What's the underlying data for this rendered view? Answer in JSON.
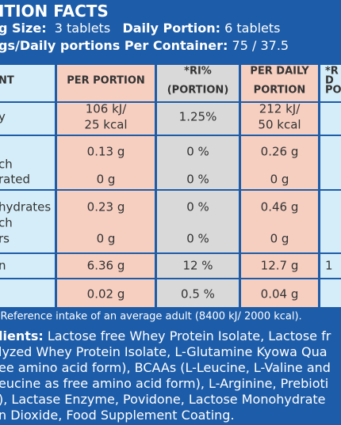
{
  "header": {
    "title": "ITION FACTS",
    "serving_label": "g Size:",
    "serving_value": "3 tablets",
    "daily_label": "Daily Portion:",
    "daily_value": "6 tablets",
    "container_label": "gs/Daily portions Per Container:",
    "container_value": "75 / 37.5"
  },
  "table": {
    "rows": [
      [
        [
          null,
          "NT",
          null
        ],
        [
          null,
          "PER PORTION",
          null
        ],
        [
          "*RI%",
          null,
          "(PORTION)"
        ],
        [
          "PER DAILY",
          null,
          "PORTION"
        ],
        [
          "*R",
          "D",
          "PO"
        ]
      ],
      [
        [
          null,
          "y",
          null
        ],
        [
          "106 kJ/",
          null,
          "25 kcal"
        ],
        [
          null,
          "1.25%",
          null
        ],
        [
          "212 kJ/",
          null,
          "50 kcal"
        ],
        [
          null,
          null,
          null
        ]
      ],
      [
        [
          null,
          "ch",
          "rated"
        ],
        [
          "0.13 g",
          null,
          "0 g"
        ],
        [
          "0 %",
          null,
          "0 %"
        ],
        [
          "0.26 g",
          null,
          "0 g"
        ],
        [
          null,
          null,
          null
        ]
      ],
      [
        [
          "hydrates",
          "ch",
          "rs"
        ],
        [
          "0.23 g",
          null,
          "0 g"
        ],
        [
          "0 %",
          null,
          "0 %"
        ],
        [
          "0.46 g",
          null,
          "0 g"
        ],
        [
          null,
          null,
          null
        ]
      ],
      [
        [
          "n"
        ],
        [
          "6.36 g"
        ],
        [
          "12 %"
        ],
        [
          "12.7 g"
        ],
        [
          "1"
        ]
      ],
      [
        [
          null
        ],
        [
          "0.02 g"
        ],
        [
          "0.5 %"
        ],
        [
          "0.04 g"
        ],
        [
          null
        ]
      ]
    ]
  },
  "footer": {
    "note": "*Reference intake of an average adult (8400 kJ/ 2000 kcal).",
    "ingredients_label": "lients:",
    "ingredients_lines": [
      "Lactose free Whey Protein Isolate, Lactose fr",
      "lyzed Whey Protein Isolate, L-Glutamine Kyowa Qua",
      "ee amino acid form), BCAAs (L-Leucine, L-Valine and",
      "eucine as free amino acid form), L-Arginine, Prebioti",
      "), Lactase Enzyme, Povidone, Lactose Monohydrate",
      "n Dioxide, Food Supplement Coating."
    ]
  }
}
